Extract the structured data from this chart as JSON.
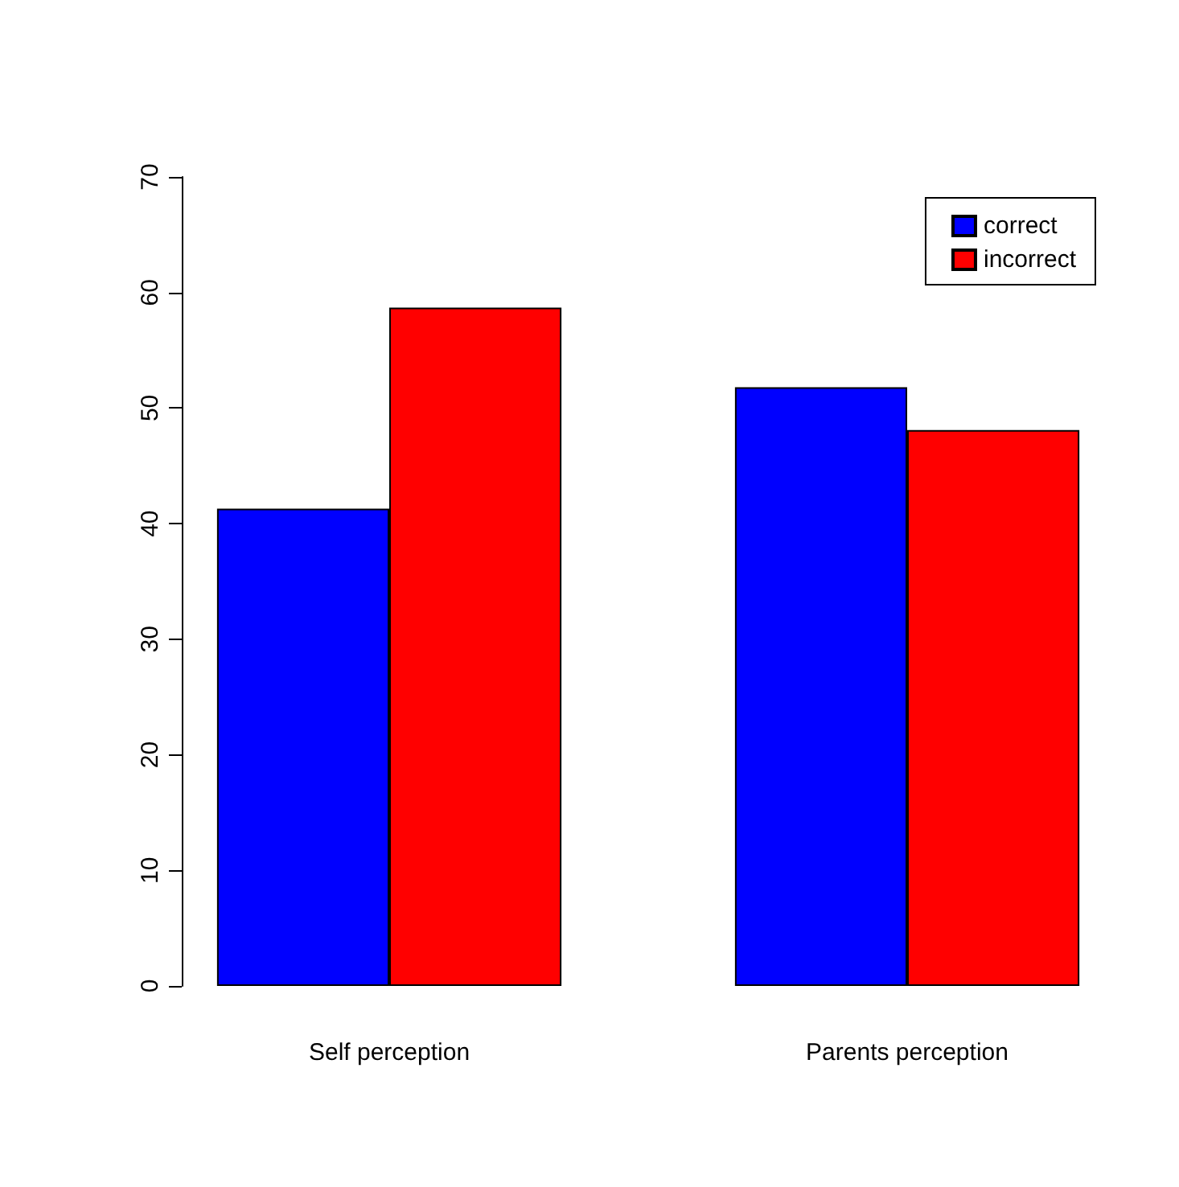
{
  "chart_data": {
    "type": "bar",
    "categories": [
      "Self perception",
      "Parents perception"
    ],
    "series": [
      {
        "name": "correct",
        "color": "#0000ff",
        "values": [
          41.3,
          51.8
        ]
      },
      {
        "name": "incorrect",
        "color": "#ff0000",
        "values": [
          58.7,
          48.1
        ]
      }
    ],
    "ylim": [
      0,
      70
    ],
    "yticks": [
      0,
      10,
      20,
      30,
      40,
      50,
      60,
      70
    ],
    "grid": false,
    "legend": "top right"
  }
}
